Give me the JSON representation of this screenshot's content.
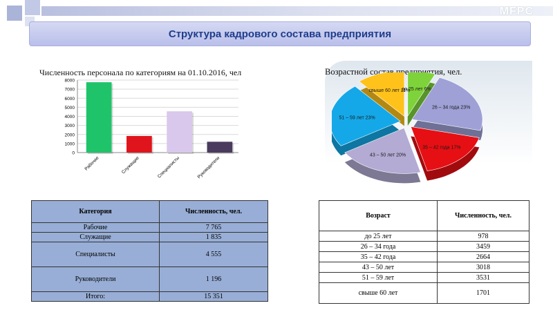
{
  "header": {
    "logo": "MFPC",
    "title": "Структура кадрового состава предприятия"
  },
  "chart_data": [
    {
      "type": "bar",
      "title": "Численность персонала по категориям на 01.10.2016, чел",
      "categories": [
        "Рабочие",
        "Служащие",
        "Специалисты",
        "Руководители"
      ],
      "values": [
        7765,
        1835,
        4555,
        1196
      ],
      "colors": [
        "#1fc46a",
        "#e0141c",
        "#d9c8ec",
        "#4a3a5e"
      ],
      "yticks": [
        0,
        1000,
        2000,
        3000,
        4000,
        5000,
        6000,
        7000,
        8000
      ],
      "ylim": [
        0,
        8000
      ],
      "grid": true
    },
    {
      "type": "pie",
      "title": "Возрастной состав предприятия, чел.",
      "slices": [
        {
          "label": "до 25 лет 6%",
          "value": 978,
          "color": "#7ed33a"
        },
        {
          "label": "26 – 34 года 23%",
          "value": 3459,
          "color": "#9ea0d6"
        },
        {
          "label": "35 – 42 года 17%",
          "value": 2664,
          "color": "#e60f14"
        },
        {
          "label": "43 – 50 лет 20%",
          "value": 3018,
          "color": "#b3abd3"
        },
        {
          "label": "51 – 59 лет 23%",
          "value": 3531,
          "color": "#14a8e8"
        },
        {
          "label": "свыше 60 лет 11%",
          "value": 1701,
          "color": "#ffc21a"
        }
      ]
    }
  ],
  "table1": {
    "headers": [
      "Категория",
      "Численность, чел."
    ],
    "rows": [
      [
        "Рабочие",
        "7 765"
      ],
      [
        "Служащие",
        "1 835"
      ],
      [
        "Специалисты",
        "4 555"
      ],
      [
        "Руководители",
        "1 196"
      ],
      [
        "Итого:",
        "15 351"
      ]
    ]
  },
  "table2": {
    "headers": [
      "Возраст",
      "Численность, чел."
    ],
    "rows": [
      [
        "до 25 лет",
        "978"
      ],
      [
        "26 – 34 года",
        "3459"
      ],
      [
        "35 – 42 года",
        "2664"
      ],
      [
        "43 – 50 лет",
        "3018"
      ],
      [
        "51 – 59 лет",
        "3531"
      ],
      [
        "свыше 60 лет",
        "1701"
      ]
    ]
  }
}
